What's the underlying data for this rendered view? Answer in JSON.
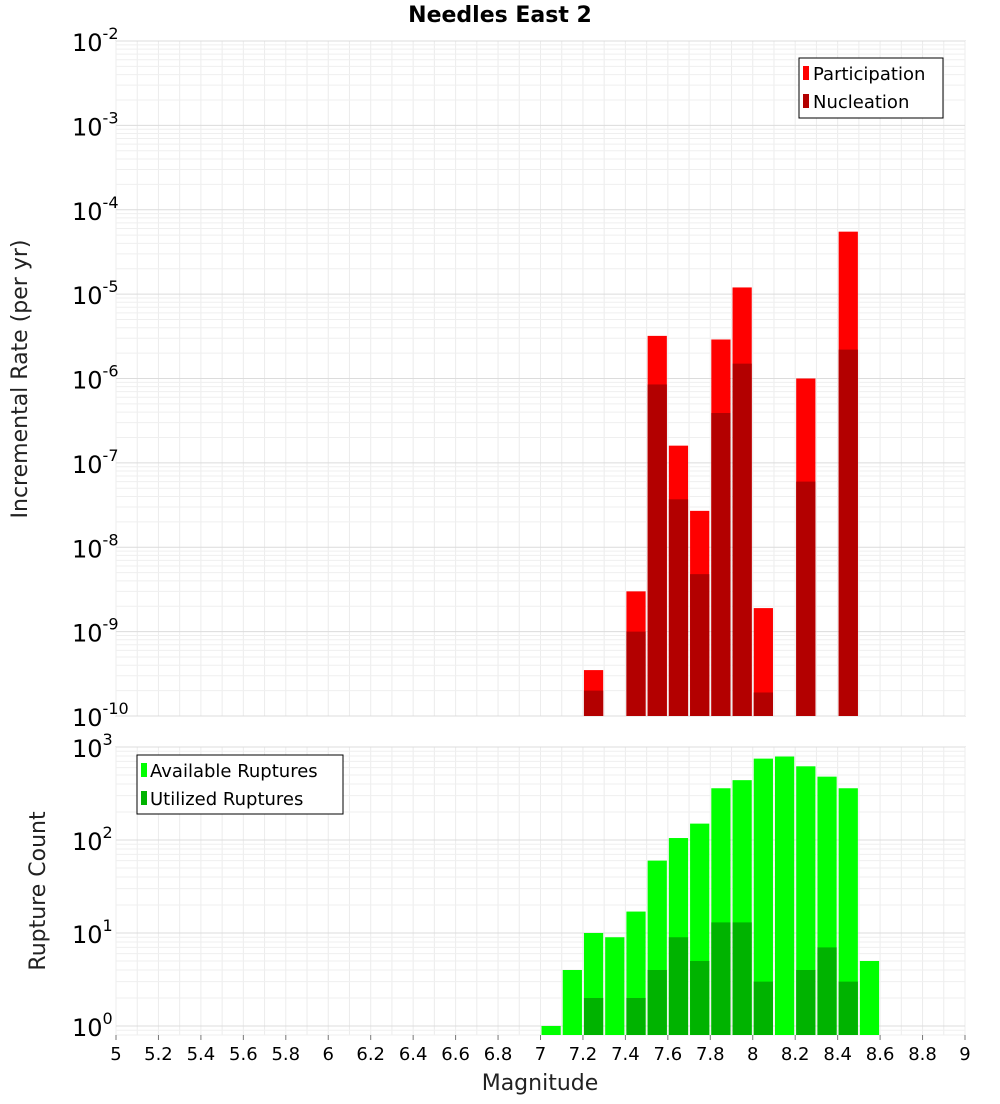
{
  "chart_data": [
    {
      "type": "bar",
      "title": "Needles East 2",
      "xlabel": "",
      "ylabel": "Incremental Rate (per yr)",
      "yscale": "log",
      "ylim": [
        1e-10,
        0.01
      ],
      "xlim": [
        5,
        9
      ],
      "y_tick_exponents": [
        "-10",
        "-9",
        "-8",
        "-7",
        "-6",
        "-5",
        "-4",
        "-3",
        "-2"
      ],
      "y_tick_base": "10",
      "grid": true,
      "legend_position": "top-right",
      "bar_width": 0.1,
      "x": [
        7.25,
        7.45,
        7.55,
        7.65,
        7.75,
        7.85,
        7.95,
        8.05,
        8.25,
        8.45
      ],
      "series": [
        {
          "name": "Participation",
          "color": "#ff0000",
          "values": [
            3.5e-10,
            3e-09,
            3.2e-06,
            1.6e-07,
            2.7e-08,
            2.9e-06,
            1.2e-05,
            1.9e-09,
            1e-06,
            5.5e-05
          ]
        },
        {
          "name": "Nucleation",
          "color": "#b30000",
          "values": [
            2e-10,
            1e-09,
            8.5e-07,
            3.7e-08,
            4.8e-09,
            3.9e-07,
            1.5e-06,
            1.9e-10,
            6e-08,
            2.2e-06
          ]
        }
      ]
    },
    {
      "type": "bar",
      "title": "",
      "xlabel": "Magnitude",
      "ylabel": "Rupture Count",
      "yscale": "log",
      "ylim": [
        0.8,
        1000
      ],
      "xlim": [
        5,
        9
      ],
      "x_ticks": [
        "5",
        "5.2",
        "5.4",
        "5.6",
        "5.8",
        "6",
        "6.2",
        "6.4",
        "6.6",
        "6.8",
        "7",
        "7.2",
        "7.4",
        "7.6",
        "7.8",
        "8",
        "8.2",
        "8.4",
        "8.6",
        "8.8",
        "9"
      ],
      "y_tick_exponents": [
        "0",
        "1",
        "2",
        "3"
      ],
      "y_tick_base": "10",
      "grid": true,
      "legend_position": "top-left",
      "bar_width": 0.1,
      "x": [
        7.05,
        7.15,
        7.25,
        7.35,
        7.45,
        7.55,
        7.65,
        7.75,
        7.85,
        7.95,
        8.05,
        8.15,
        8.25,
        8.35,
        8.45,
        8.55
      ],
      "series": [
        {
          "name": "Available Ruptures",
          "color": "#00ff00",
          "values": [
            1,
            4,
            10,
            9,
            17,
            60,
            105,
            150,
            360,
            440,
            750,
            790,
            620,
            480,
            360,
            5
          ]
        },
        {
          "name": "Utilized Ruptures",
          "color": "#00b300",
          "values": [
            0,
            0,
            2,
            0,
            2,
            4,
            9,
            5,
            13,
            13,
            3,
            0,
            4,
            7,
            3,
            0
          ]
        }
      ]
    }
  ]
}
